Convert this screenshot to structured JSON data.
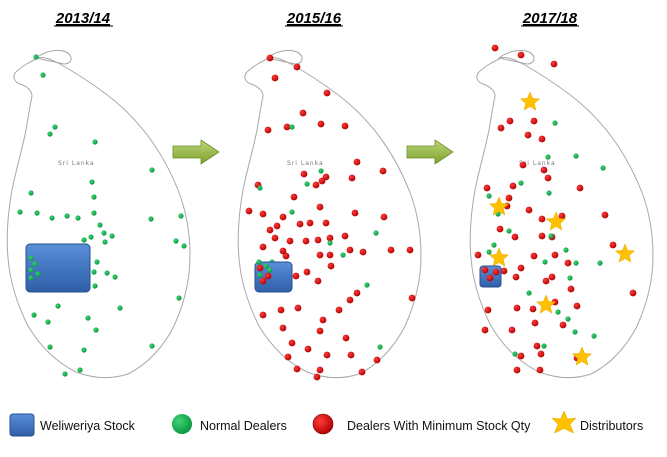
{
  "panels": [
    {
      "id": "p1",
      "title": "2013/14",
      "island_label": "Sri Lanka"
    },
    {
      "id": "p2",
      "title": "2015/16",
      "island_label": "Sri Lanka"
    },
    {
      "id": "p3",
      "title": "2017/18",
      "island_label": "Sri Lanka"
    }
  ],
  "legend": {
    "stock": "Weliweriya Stock",
    "normal": "Normal Dealers",
    "minimum": "Dealers With Minimum Stock Qty",
    "distributors": "Distributors"
  },
  "colors": {
    "normal_dealer": "#0BB04B",
    "min_stock_dealer": "#D40000",
    "distributor": "#FFC000",
    "stock_box": "#3F77C6",
    "arrow": "#8DB33A",
    "outline": "#9a9a9a"
  },
  "icons": {
    "arrow": "right-arrow-icon",
    "stock": "blue-rounded-square-icon",
    "normal": "green-circle-icon",
    "minimum": "red-circle-icon",
    "distributor": "yellow-star-icon"
  }
}
